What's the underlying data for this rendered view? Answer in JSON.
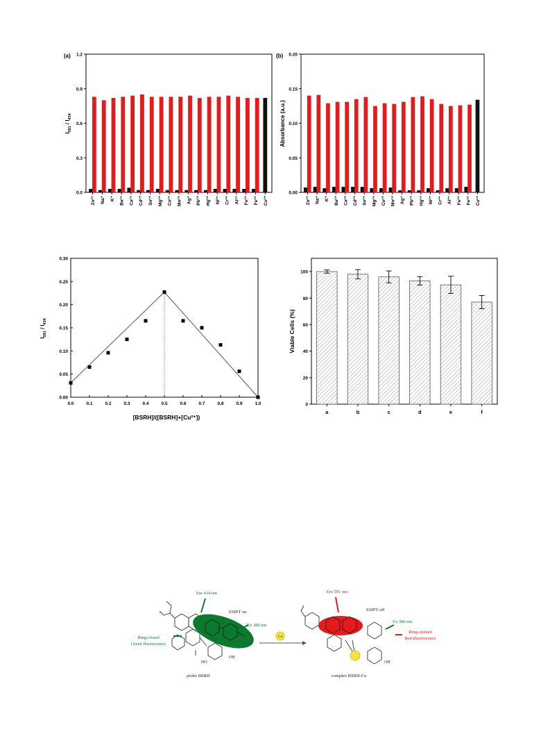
{
  "colors": {
    "red": "#e41a1c",
    "black": "#111111",
    "green": "#0b7a2f",
    "yellow": "#f2e24a",
    "hatch": "#9a9a9a"
  },
  "ions": [
    "Zn²⁺",
    "Na⁺",
    "K⁺",
    "Ba²⁺",
    "Ca²⁺",
    "Cd²⁺",
    "Sn²⁺",
    "Mg²⁺",
    "Co²⁺",
    "Mn²⁺",
    "Ag⁺",
    "Pb²⁺",
    "Hg²⁺",
    "Ni²⁺",
    "Cr³⁺",
    "Al³⁺",
    "Fe²⁺",
    "Fe³⁺",
    "Cu²⁺"
  ],
  "chart_data": [
    {
      "panel": "(a)",
      "type": "bar",
      "ylabel_main": "I",
      "ylabel_sub1": "591",
      "ylabel_sep": " / I",
      "ylabel_sub2": "434",
      "ylim": [
        0,
        1.2
      ],
      "yticks": [
        "0.0",
        "0.3",
        "0.6",
        "0.9",
        "1.2"
      ],
      "series": [
        {
          "values": [
            0.83,
            0.8,
            0.82,
            0.83,
            0.84,
            0.85,
            0.83,
            0.83,
            0.83,
            0.83,
            0.84,
            0.82,
            0.83,
            0.83,
            0.84,
            0.83,
            0.82,
            0.82,
            0.0
          ]
        },
        {
          "values": [
            0.03,
            0.02,
            0.03,
            0.03,
            0.04,
            0.02,
            0.02,
            0.03,
            0.02,
            0.02,
            0.02,
            0.02,
            0.02,
            0.03,
            0.03,
            0.03,
            0.03,
            0.03,
            0.82
          ]
        }
      ]
    },
    {
      "panel": "(b)",
      "type": "bar",
      "ylabel": "Absorbance (a.u.)",
      "ylim": [
        0,
        0.2
      ],
      "yticks": [
        "0.00",
        "0.05",
        "0.10",
        "0.15",
        "0.20"
      ],
      "series": [
        {
          "values": [
            0.14,
            0.141,
            0.129,
            0.131,
            0.131,
            0.135,
            0.138,
            0.125,
            0.129,
            0.128,
            0.131,
            0.138,
            0.139,
            0.135,
            0.128,
            0.125,
            0.126,
            0.127,
            0.0
          ]
        },
        {
          "values": [
            0.007,
            0.008,
            0.006,
            0.008,
            0.008,
            0.008,
            0.008,
            0.006,
            0.006,
            0.007,
            0.003,
            0.003,
            0.003,
            0.006,
            0.003,
            0.006,
            0.006,
            0.008,
            0.134
          ]
        }
      ]
    },
    {
      "type": "scatter",
      "xlabel": "[BSRH]/([BSRH]+[Cu²⁺])",
      "ylabel_main": "I",
      "ylabel_sub1": "591",
      "ylabel_sep": " / I",
      "ylabel_sub2": "434",
      "xlim": [
        0,
        1.0
      ],
      "ylim": [
        0,
        0.3
      ],
      "xticks": [
        "0.0",
        "0.1",
        "0.2",
        "0.3",
        "0.4",
        "0.5",
        "0.6",
        "0.7",
        "0.8",
        "0.9",
        "1.0"
      ],
      "yticks": [
        "0.00",
        "0.05",
        "0.10",
        "0.15",
        "0.20",
        "0.25",
        "0.30"
      ],
      "x": [
        0.0,
        0.1,
        0.2,
        0.3,
        0.4,
        0.5,
        0.6,
        0.7,
        0.8,
        0.9,
        1.0
      ],
      "y": [
        0.031,
        0.065,
        0.096,
        0.125,
        0.165,
        0.227,
        0.165,
        0.15,
        0.113,
        0.056,
        0.0
      ],
      "fit_lines": [
        [
          [
            0.0,
            0.031
          ],
          [
            0.5,
            0.227
          ]
        ],
        [
          [
            0.5,
            0.227
          ],
          [
            1.0,
            0.0
          ]
        ]
      ],
      "guide_x": 0.5
    },
    {
      "type": "bar",
      "ylabel": "Viable Cells (%)",
      "ylim": [
        0,
        110
      ],
      "yticks": [
        "0",
        "20",
        "40",
        "60",
        "80",
        "100"
      ],
      "categories": [
        "a",
        "b",
        "c",
        "d",
        "e",
        "f"
      ],
      "values": [
        100,
        98,
        96,
        93,
        90,
        77
      ],
      "errors": [
        1.2,
        3.5,
        4.5,
        3.2,
        6.5,
        5.0
      ]
    }
  ],
  "scheme": {
    "left": {
      "em": "Em 434 nm",
      "esipt": "ESIPT on",
      "ex": "Ex 380 nm",
      "state_line1": "Ring-closed",
      "state_line2": "Green fluorescence",
      "ho": "HO",
      "oh": "OH",
      "caption": "probe BSRH"
    },
    "reagent": "Cu",
    "right": {
      "em": "Em 591 nm",
      "esipt": "ESIPT off",
      "ex": "Ex 380 nm",
      "state_line1": "Ring-opened",
      "state_line2": "Red fluorescence",
      "oh": "OH",
      "caption": "complex BSRH-Cu"
    }
  }
}
